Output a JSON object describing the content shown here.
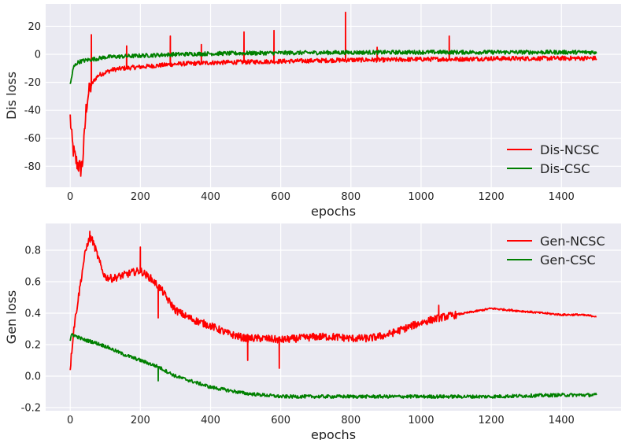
{
  "chart_data": [
    {
      "type": "line",
      "xlabel": "epochs",
      "ylabel": "Dis loss",
      "xlim": [
        -70,
        1570
      ],
      "ylim": [
        -95,
        36
      ],
      "xticks": [
        0,
        200,
        400,
        600,
        800,
        1000,
        1200,
        1400
      ],
      "yticks": [
        -80,
        -60,
        -40,
        -20,
        0,
        20
      ],
      "legend": "bottom-right",
      "grid": true,
      "series": [
        {
          "name": "Dis-NCSC",
          "color": "#ff0000",
          "x": [
            0,
            5,
            10,
            15,
            20,
            25,
            30,
            35,
            40,
            45,
            50,
            60,
            70,
            80,
            100,
            120,
            150,
            200,
            250,
            300,
            400,
            500,
            600,
            700,
            800,
            900,
            1000,
            1100,
            1200,
            1300,
            1400,
            1500
          ],
          "values": [
            -45,
            -62,
            -70,
            -75,
            -78,
            -80,
            -82,
            -78,
            -60,
            -40,
            -30,
            -22,
            -18,
            -15,
            -13,
            -11,
            -10,
            -9,
            -8,
            -7,
            -6,
            -5.5,
            -5,
            -4.5,
            -4,
            -4,
            -3.5,
            -3.5,
            -3,
            -3,
            -2.8,
            -2.8
          ],
          "spikes": [
            [
              60,
              14
            ],
            [
              160,
              6
            ],
            [
              285,
              13
            ],
            [
              373,
              7
            ],
            [
              495,
              16
            ],
            [
              580,
              17
            ],
            [
              785,
              30
            ],
            [
              875,
              5
            ],
            [
              1080,
              13
            ]
          ]
        },
        {
          "name": "Dis-CSC",
          "color": "#008000",
          "x": [
            0,
            5,
            10,
            20,
            30,
            50,
            80,
            100,
            150,
            200,
            300,
            400,
            500,
            600,
            800,
            1000,
            1200,
            1400,
            1500
          ],
          "values": [
            -22,
            -15,
            -9,
            -6,
            -5,
            -4,
            -3,
            -2,
            -1.5,
            -1,
            0,
            0.5,
            0.8,
            1,
            1.3,
            1.5,
            1.5,
            1.5,
            1.5
          ]
        }
      ]
    },
    {
      "type": "line",
      "xlabel": "epochs",
      "ylabel": "Gen loss",
      "xlim": [
        -70,
        1570
      ],
      "ylim": [
        -0.22,
        0.97
      ],
      "xticks": [
        0,
        200,
        400,
        600,
        800,
        1000,
        1200,
        1400
      ],
      "yticks": [
        -0.2,
        0.0,
        0.2,
        0.4,
        0.6,
        0.8
      ],
      "legend": "top-right",
      "grid": true,
      "series": [
        {
          "name": "Gen-NCSC",
          "color": "#ff0000",
          "x": [
            0,
            10,
            20,
            30,
            40,
            50,
            60,
            70,
            80,
            90,
            100,
            120,
            150,
            180,
            200,
            230,
            260,
            280,
            300,
            330,
            360,
            400,
            450,
            500,
            550,
            600,
            650,
            700,
            750,
            800,
            850,
            900,
            950,
            1000,
            1050,
            1100,
            1150,
            1200,
            1250,
            1300,
            1350,
            1400,
            1450,
            1500
          ],
          "values": [
            0.05,
            0.3,
            0.45,
            0.6,
            0.75,
            0.85,
            0.88,
            0.82,
            0.75,
            0.68,
            0.63,
            0.62,
            0.64,
            0.66,
            0.67,
            0.62,
            0.55,
            0.48,
            0.42,
            0.38,
            0.35,
            0.32,
            0.27,
            0.24,
            0.24,
            0.23,
            0.24,
            0.25,
            0.25,
            0.24,
            0.24,
            0.26,
            0.3,
            0.34,
            0.37,
            0.39,
            0.41,
            0.43,
            0.42,
            0.41,
            0.4,
            0.39,
            0.39,
            0.38
          ],
          "spikes": [
            [
              55,
              0.92
            ],
            [
              200,
              0.82
            ],
            [
              250,
              0.37
            ],
            [
              505,
              0.1
            ],
            [
              595,
              0.05
            ],
            [
              1050,
              0.45
            ]
          ]
        },
        {
          "name": "Gen-CSC",
          "color": "#008000",
          "x": [
            0,
            5,
            10,
            20,
            40,
            60,
            100,
            150,
            200,
            250,
            300,
            400,
            500,
            600,
            700,
            800,
            1000,
            1200,
            1400,
            1500
          ],
          "values": [
            0.22,
            0.27,
            0.26,
            0.25,
            0.23,
            0.22,
            0.19,
            0.14,
            0.1,
            0.06,
            0.0,
            -0.07,
            -0.11,
            -0.13,
            -0.13,
            -0.13,
            -0.13,
            -0.13,
            -0.12,
            -0.12
          ],
          "spikes": [
            [
              250,
              -0.03
            ]
          ]
        }
      ]
    }
  ]
}
